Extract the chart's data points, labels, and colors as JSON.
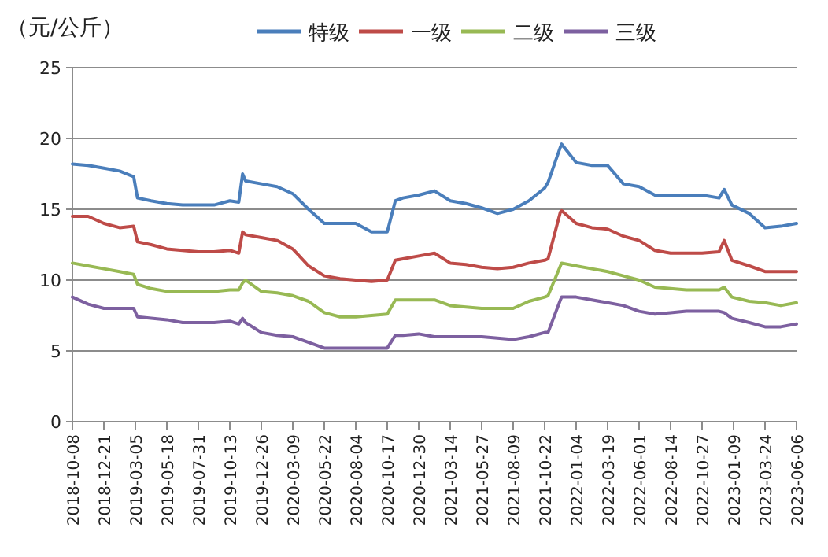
{
  "chart_data": {
    "type": "line",
    "ylabel": "（元/公斤）",
    "x": [
      "2018-10-08",
      "2018-11-14",
      "2018-12-21",
      "2019-01-27",
      "2019-03-01",
      "2019-03-10",
      "2019-04-11",
      "2019-05-18",
      "2019-06-24",
      "2019-07-31",
      "2019-09-06",
      "2019-10-13",
      "2019-11-03",
      "2019-11-12",
      "2019-11-19",
      "2019-12-26",
      "2020-02-01",
      "2020-03-09",
      "2020-04-15",
      "2020-05-22",
      "2020-06-28",
      "2020-08-04",
      "2020-09-10",
      "2020-10-17",
      "2020-11-05",
      "2020-11-23",
      "2020-12-30",
      "2021-02-05",
      "2021-03-14",
      "2021-04-20",
      "2021-05-27",
      "2021-07-03",
      "2021-08-09",
      "2021-09-15",
      "2021-10-22",
      "2021-10-30",
      "2021-11-28",
      "2021-12-01",
      "2022-01-04",
      "2022-02-10",
      "2022-03-19",
      "2022-04-25",
      "2022-06-01",
      "2022-07-08",
      "2022-08-14",
      "2022-09-20",
      "2022-10-27",
      "2022-12-06",
      "2022-12-18",
      "2023-01-05",
      "2023-02-15",
      "2023-03-24",
      "2023-04-30",
      "2023-06-06"
    ],
    "series": [
      {
        "name": "特级",
        "color": "#4a7ebb",
        "values": [
          18.2,
          18.1,
          17.9,
          17.7,
          17.3,
          15.8,
          15.6,
          15.4,
          15.3,
          15.3,
          15.3,
          15.6,
          15.5,
          17.5,
          17.0,
          16.8,
          16.6,
          16.1,
          15.0,
          14.0,
          14.0,
          14.0,
          13.4,
          13.4,
          15.6,
          15.8,
          16.0,
          16.3,
          15.6,
          15.4,
          15.1,
          14.7,
          15.0,
          15.6,
          16.5,
          16.9,
          19.4,
          19.6,
          18.3,
          18.1,
          18.1,
          16.8,
          16.6,
          16.0,
          16.0,
          16.0,
          16.0,
          15.8,
          16.4,
          15.3,
          14.7,
          13.7,
          13.8,
          14.0
        ]
      },
      {
        "name": "一级",
        "color": "#be4b48",
        "values": [
          14.5,
          14.5,
          14.0,
          13.7,
          13.8,
          12.7,
          12.5,
          12.2,
          12.1,
          12.0,
          12.0,
          12.1,
          11.9,
          13.4,
          13.2,
          13.0,
          12.8,
          12.2,
          11.0,
          10.3,
          10.1,
          10.0,
          9.9,
          10.0,
          11.4,
          11.5,
          11.7,
          11.9,
          11.2,
          11.1,
          10.9,
          10.8,
          10.9,
          11.2,
          11.4,
          11.5,
          14.8,
          14.9,
          14.0,
          13.7,
          13.6,
          13.1,
          12.8,
          12.1,
          11.9,
          11.9,
          11.9,
          12.0,
          12.8,
          11.4,
          11.0,
          10.6,
          10.6,
          10.6
        ]
      },
      {
        "name": "二级",
        "color": "#98b954",
        "values": [
          11.2,
          11.0,
          10.8,
          10.6,
          10.4,
          9.7,
          9.4,
          9.2,
          9.2,
          9.2,
          9.2,
          9.3,
          9.3,
          9.8,
          10.0,
          9.2,
          9.1,
          8.9,
          8.5,
          7.7,
          7.4,
          7.4,
          7.5,
          7.6,
          8.6,
          8.6,
          8.6,
          8.6,
          8.2,
          8.1,
          8.0,
          8.0,
          8.0,
          8.5,
          8.8,
          8.9,
          11.0,
          11.2,
          11.0,
          10.8,
          10.6,
          10.3,
          10.0,
          9.5,
          9.4,
          9.3,
          9.3,
          9.3,
          9.5,
          8.8,
          8.5,
          8.4,
          8.2,
          8.4
        ]
      },
      {
        "name": "三级",
        "color": "#7d60a0",
        "values": [
          8.8,
          8.3,
          8.0,
          8.0,
          8.0,
          7.4,
          7.3,
          7.2,
          7.0,
          7.0,
          7.0,
          7.1,
          6.9,
          7.3,
          7.0,
          6.3,
          6.1,
          6.0,
          5.6,
          5.2,
          5.2,
          5.2,
          5.2,
          5.2,
          6.1,
          6.1,
          6.2,
          6.0,
          6.0,
          6.0,
          6.0,
          5.9,
          5.8,
          6.0,
          6.3,
          6.3,
          8.6,
          8.8,
          8.8,
          8.6,
          8.4,
          8.2,
          7.8,
          7.6,
          7.7,
          7.8,
          7.8,
          7.8,
          7.7,
          7.3,
          7.0,
          6.7,
          6.7,
          6.9
        ]
      }
    ],
    "xlim": [
      "2018-10-08",
      "2023-06-06"
    ],
    "xticks": [
      "2018-10-08",
      "2018-12-21",
      "2019-03-05",
      "2019-05-18",
      "2019-07-31",
      "2019-10-13",
      "2019-12-26",
      "2020-03-09",
      "2020-05-22",
      "2020-08-04",
      "2020-10-17",
      "2020-12-30",
      "2021-03-14",
      "2021-05-27",
      "2021-08-09",
      "2021-10-22",
      "2022-01-04",
      "2022-03-19",
      "2022-06-01",
      "2022-08-14",
      "2022-10-27",
      "2023-01-09",
      "2023-03-24",
      "2023-06-06"
    ],
    "ylim": [
      0,
      25
    ],
    "yticks": [
      0,
      5,
      10,
      15,
      20,
      25
    ],
    "grid": "y",
    "legend": "top"
  }
}
